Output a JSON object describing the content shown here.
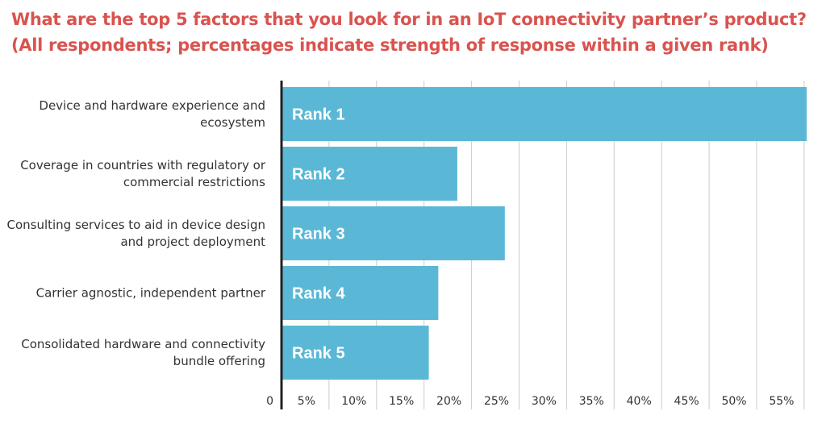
{
  "title_line1": "What are the top 5 factors that you look for in an IoT connectivity partner’s product?",
  "title_line2": "(All respondents; percentages indicate strength of response within a given rank)",
  "colors": {
    "title": "#d9534f",
    "bar": "#5ab8d6",
    "grid": "#cccccc",
    "axis": "#222222",
    "text": "#333333"
  },
  "chart_data": {
    "type": "bar",
    "orientation": "horizontal",
    "categories": [
      [
        "Device and hardware experience and",
        "ecosystem"
      ],
      [
        "Coverage in countries with regulatory or",
        "commercial restrictions"
      ],
      [
        "Consulting services to aid in device design",
        "and project deployment"
      ],
      [
        "Carrier agnostic, independent partner"
      ],
      [
        "Consolidated hardware and connectivity",
        "bundle offering"
      ]
    ],
    "values": [
      55.5,
      18.5,
      23.5,
      16.5,
      15.5
    ],
    "bar_labels": [
      "Rank 1",
      "Rank 2",
      "Rank 3",
      "Rank 4",
      "Rank 5"
    ],
    "xlim": [
      0,
      55
    ],
    "xticks": [
      0,
      5,
      10,
      15,
      20,
      25,
      30,
      35,
      40,
      45,
      50,
      55
    ],
    "xtick_labels": [
      "0",
      "5%",
      "10%",
      "15%",
      "20%",
      "25%",
      "30%",
      "35%",
      "40%",
      "45%",
      "50%",
      "55%"
    ],
    "grid": true
  }
}
